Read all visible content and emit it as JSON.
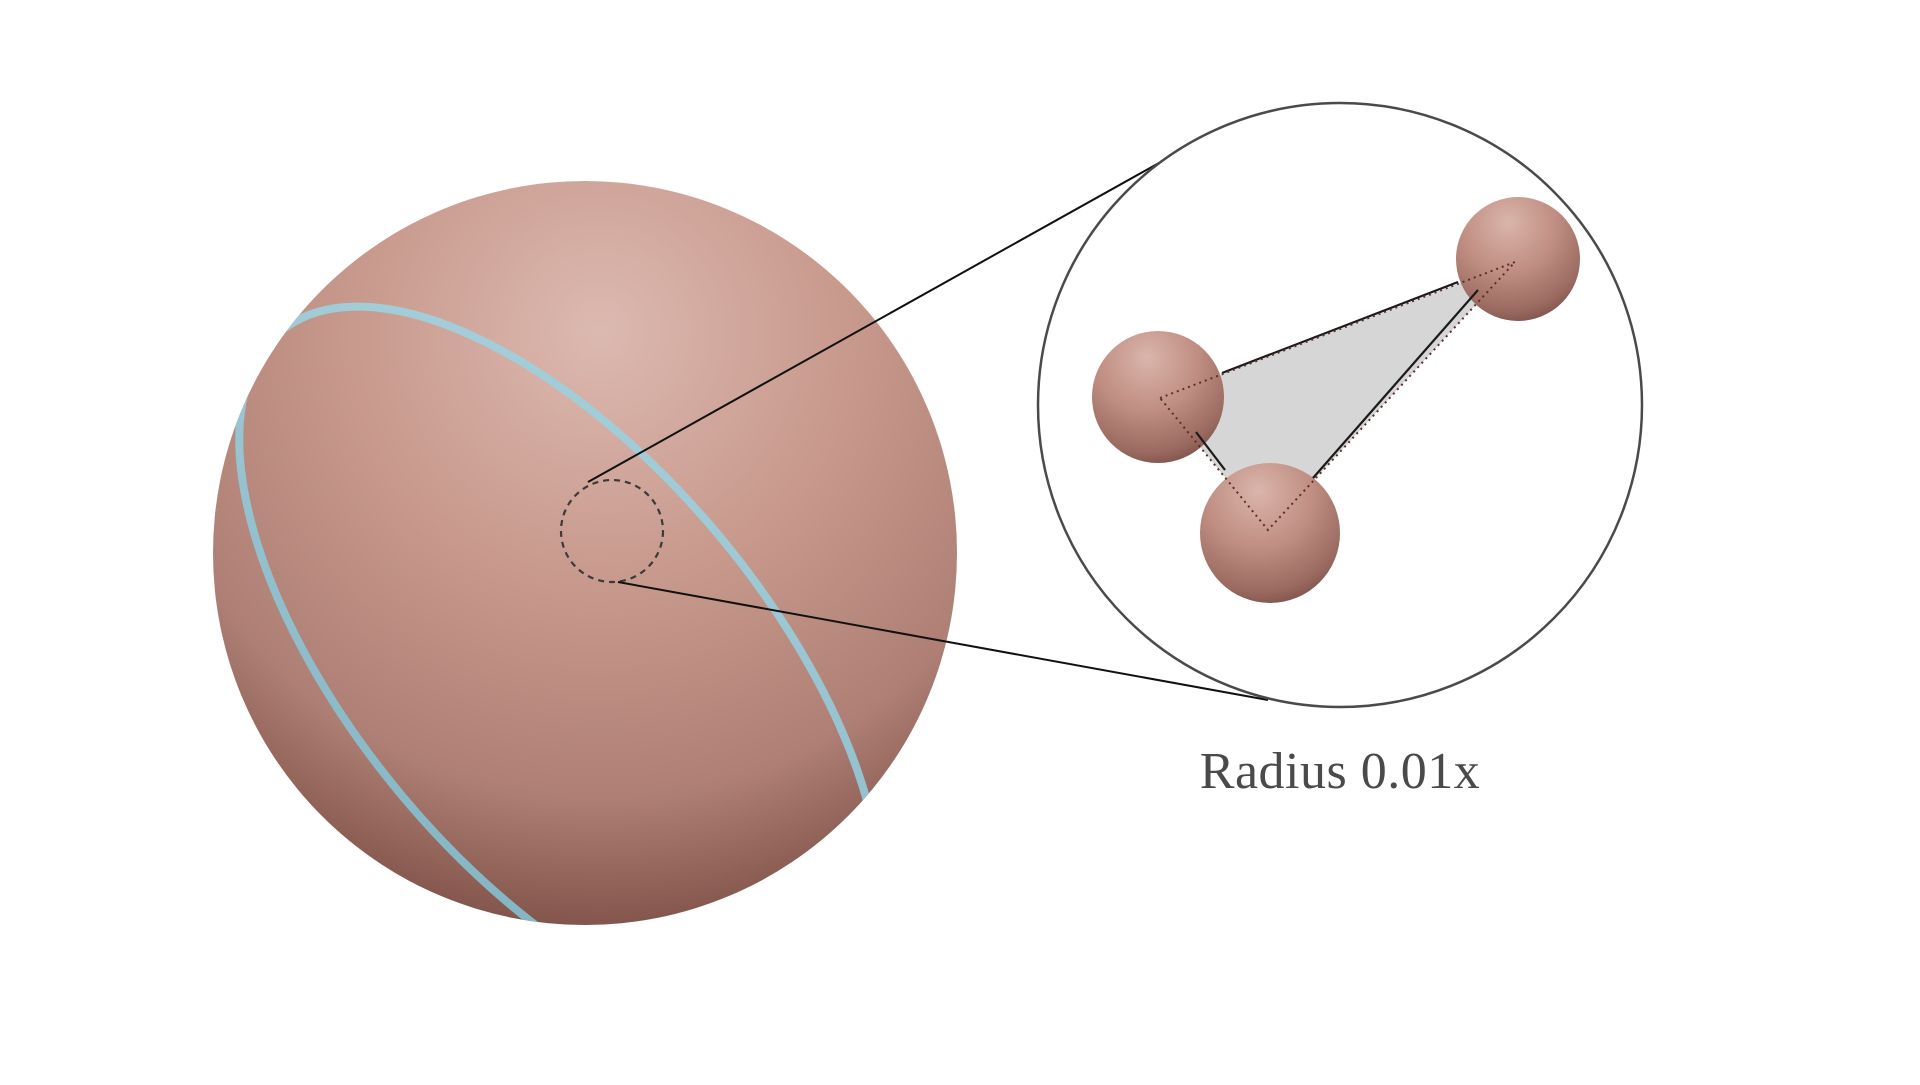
{
  "caption": "Radius 0.01x",
  "colors": {
    "sphere_light": "#dcb8ae",
    "sphere_mid": "#c08e82",
    "sphere_dark": "#3f2420",
    "great_circle": "#9fcad6",
    "triangle_fill": "#d6d6d6",
    "outline": "#444444"
  },
  "icons": {
    "large_sphere": "sphere",
    "zoom_circle": "magnifier-circle",
    "vertex": "small-sphere"
  }
}
